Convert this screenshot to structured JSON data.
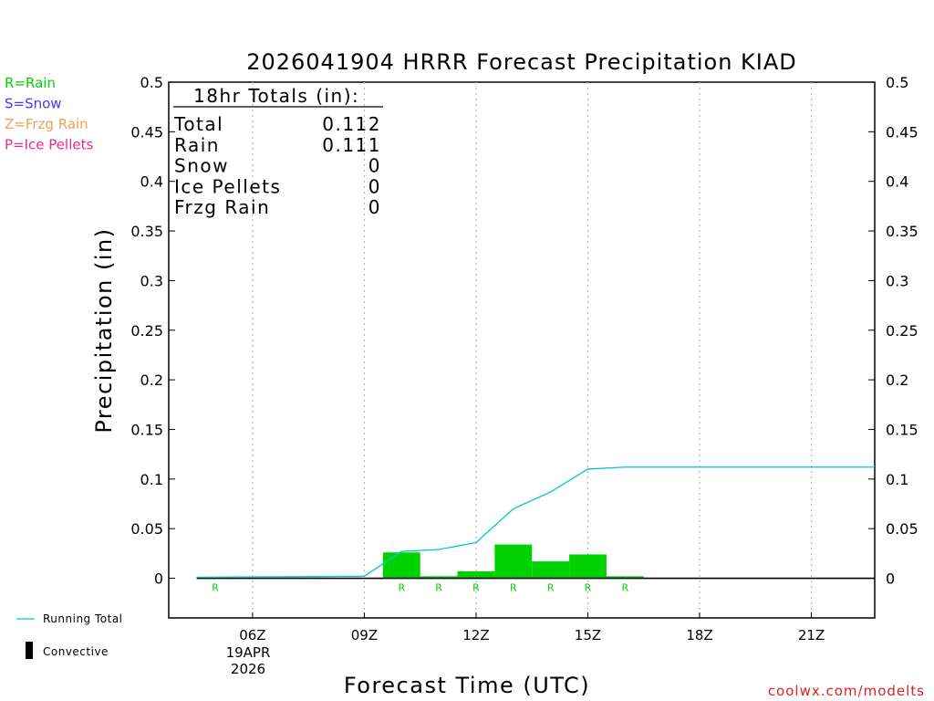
{
  "chart_data": {
    "type": "bar",
    "title": "2026041904 HRRR Forecast Precipitation KIAD",
    "xlabel": "Forecast Time (UTC)",
    "ylabel": "Precipitation (in)",
    "ylim": [
      -0.04,
      0.5
    ],
    "xlim": [
      3.75,
      22.7
    ],
    "grid": "vertical-dotted",
    "y_ticks": [
      {
        "value": 0.5,
        "label": "0.5"
      },
      {
        "value": 0.45,
        "label": "0.45"
      },
      {
        "value": 0.4,
        "label": "0.4"
      },
      {
        "value": 0.35,
        "label": "0.35"
      },
      {
        "value": 0.3,
        "label": "0.3"
      },
      {
        "value": 0.25,
        "label": "0.25"
      },
      {
        "value": 0.2,
        "label": "0.2"
      },
      {
        "value": 0.15,
        "label": "0.15"
      },
      {
        "value": 0.1,
        "label": "0.1"
      },
      {
        "value": 0.05,
        "label": "0.05"
      },
      {
        "value": 0,
        "label": "0"
      }
    ],
    "x_ticks": [
      {
        "value": 6,
        "label": "06Z"
      },
      {
        "value": 9,
        "label": "09Z"
      },
      {
        "value": 12,
        "label": "12Z"
      },
      {
        "value": 15,
        "label": "15Z"
      },
      {
        "value": 18,
        "label": "18Z"
      },
      {
        "value": 21,
        "label": "21Z"
      }
    ],
    "date_label": [
      "19APR",
      "2026"
    ],
    "series": [
      {
        "name": "Hourly Rain",
        "color": "#00d200",
        "values": [
          {
            "hour": 5,
            "value": 0.0005,
            "type": "R"
          },
          {
            "hour": 6,
            "value": 0,
            "type": ""
          },
          {
            "hour": 7,
            "value": 0,
            "type": ""
          },
          {
            "hour": 8,
            "value": 0,
            "type": ""
          },
          {
            "hour": 9,
            "value": 0,
            "type": ""
          },
          {
            "hour": 10,
            "value": 0.026,
            "type": "R"
          },
          {
            "hour": 11,
            "value": 0.002,
            "type": "R"
          },
          {
            "hour": 12,
            "value": 0.007,
            "type": "R"
          },
          {
            "hour": 13,
            "value": 0.034,
            "type": "R"
          },
          {
            "hour": 14,
            "value": 0.017,
            "type": "R"
          },
          {
            "hour": 15,
            "value": 0.024,
            "type": "R"
          },
          {
            "hour": 16,
            "value": 0.002,
            "type": "R"
          },
          {
            "hour": 17,
            "value": 0,
            "type": ""
          },
          {
            "hour": 18,
            "value": 0,
            "type": ""
          },
          {
            "hour": 19,
            "value": 0,
            "type": ""
          },
          {
            "hour": 20,
            "value": 0,
            "type": ""
          },
          {
            "hour": 21,
            "value": 0,
            "type": ""
          },
          {
            "hour": 22,
            "value": 0,
            "type": ""
          }
        ]
      },
      {
        "name": "Running Total",
        "color": "#00c8c8",
        "points": [
          {
            "hour": 4.5,
            "value": 0.001
          },
          {
            "hour": 9,
            "value": 0.002
          },
          {
            "hour": 10,
            "value": 0.027
          },
          {
            "hour": 11,
            "value": 0.029
          },
          {
            "hour": 12,
            "value": 0.036
          },
          {
            "hour": 13,
            "value": 0.07
          },
          {
            "hour": 14,
            "value": 0.087
          },
          {
            "hour": 15,
            "value": 0.11
          },
          {
            "hour": 16,
            "value": 0.112
          },
          {
            "hour": 22.7,
            "value": 0.112
          }
        ]
      }
    ],
    "convective_line": {
      "from_hour": 4.5,
      "to_hour": 22.7,
      "value": 0
    }
  },
  "totals_box": {
    "heading": "18hr Totals (in):",
    "rows": [
      {
        "label": "Total",
        "value": "0.112"
      },
      {
        "label": "Rain",
        "value": "0.111"
      },
      {
        "label": "Snow",
        "value": "0"
      },
      {
        "label": "Ice Pellets",
        "value": "0"
      },
      {
        "label": "Frzg Rain",
        "value": "0"
      }
    ]
  },
  "ptype_legend": [
    {
      "text": "R=Rain",
      "color": "#00d200"
    },
    {
      "text": "S=Snow",
      "color": "#3c3cff"
    },
    {
      "text": "Z=Frzg Rain",
      "color": "#f0a050"
    },
    {
      "text": "P=Ice Pellets",
      "color": "#f0288c"
    }
  ],
  "bottom_legend": {
    "running_total": "Running Total",
    "convective": "Convective"
  },
  "credit": "coolwx.com/modelts"
}
